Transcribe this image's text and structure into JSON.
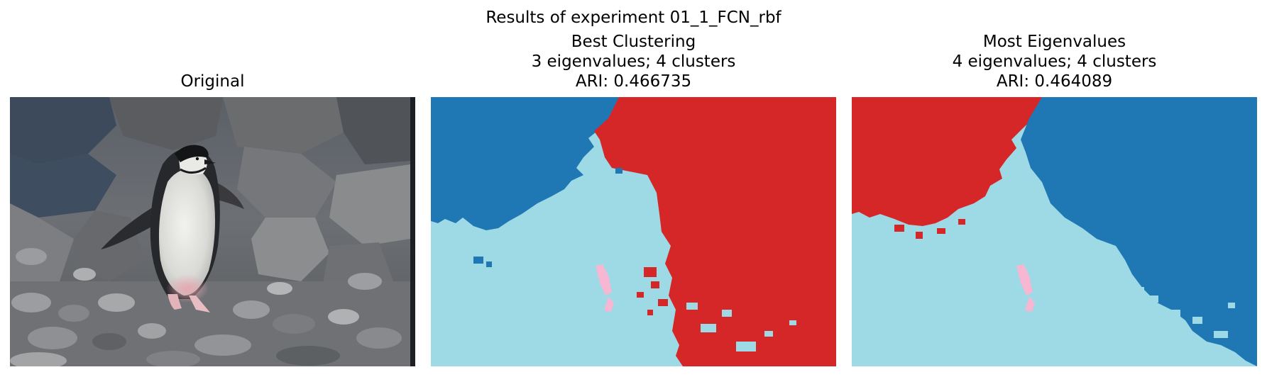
{
  "figure": {
    "suptitle": "Results of experiment 01_1_FCN_rbf"
  },
  "panels": [
    {
      "title_lines": [
        "Original"
      ],
      "kind": "photo"
    },
    {
      "title_lines": [
        "Best Clustering",
        "3 eigenvalues; 4 clusters",
        "ARI: 0.466735"
      ],
      "kind": "segmentation"
    },
    {
      "title_lines": [
        "Most Eigenvalues",
        "4 eigenvalues; 4 clusters",
        "ARI: 0.464089"
      ],
      "kind": "segmentation"
    }
  ],
  "colors": {
    "cluster_blue": "#1f77b4",
    "cluster_red": "#d62728",
    "cluster_lightblue": "#9edae5",
    "cluster_pink": "#f7b6d2",
    "rock_dark": "#4a4e52",
    "rock_mid": "#7d8086",
    "rock_light": "#a8a9ab",
    "penguin_black": "#1d1f22",
    "penguin_white": "#e6e6e2"
  }
}
